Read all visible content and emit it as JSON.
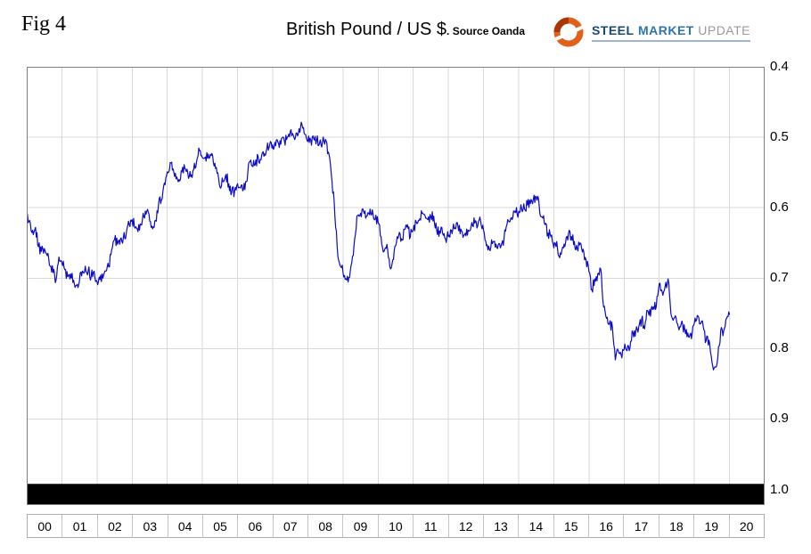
{
  "header": {
    "fig_label": "Fig 4",
    "title": "British Pound / US $",
    "source_note": ". Source Oanda"
  },
  "logo": {
    "word1": "STEEL",
    "word2": "MARKET",
    "word3": "UPDATE",
    "ring_color": "#e2611a"
  },
  "chart_data": {
    "type": "line",
    "title": "British Pound / US $",
    "source": "Oanda",
    "grid": true,
    "y_axis_increases_downward": true,
    "x_range_years": [
      2000,
      2021
    ],
    "y_range_top_to_bottom": [
      0.4,
      1.022
    ],
    "x_tick_labels": [
      "00",
      "01",
      "02",
      "03",
      "04",
      "05",
      "06",
      "07",
      "08",
      "09",
      "10",
      "11",
      "12",
      "13",
      "14",
      "15",
      "16",
      "17",
      "18",
      "19",
      "20"
    ],
    "y_tick_labels": [
      "0.4",
      "0.5",
      "0.6",
      "0.7",
      "0.8",
      "0.9",
      "1.0"
    ],
    "y_tick_values": [
      0.4,
      0.5,
      0.6,
      0.7,
      0.8,
      0.9,
      1.0
    ],
    "line_color": "#0b0bc8",
    "grid_color": "#d9d9d9",
    "border_color": "#7f7f7f",
    "bottom_bar": {
      "from_value": 0.992,
      "color": "#000000"
    },
    "series": [
      {
        "name": "British Pound / US $",
        "x_start": 2000.0,
        "x_step": 0.0833,
        "monthly_values": [
          0.615,
          0.618,
          0.632,
          0.628,
          0.655,
          0.662,
          0.658,
          0.668,
          0.683,
          0.692,
          0.703,
          0.67,
          0.678,
          0.688,
          0.698,
          0.694,
          0.703,
          0.71,
          0.704,
          0.69,
          0.683,
          0.689,
          0.698,
          0.69,
          0.705,
          0.702,
          0.7,
          0.69,
          0.684,
          0.66,
          0.645,
          0.652,
          0.644,
          0.642,
          0.636,
          0.624,
          0.617,
          0.629,
          0.634,
          0.624,
          0.613,
          0.605,
          0.619,
          0.63,
          0.618,
          0.596,
          0.589,
          0.565,
          0.549,
          0.536,
          0.545,
          0.559,
          0.56,
          0.549,
          0.544,
          0.551,
          0.556,
          0.546,
          0.534,
          0.519,
          0.529,
          0.528,
          0.524,
          0.526,
          0.541,
          0.551,
          0.571,
          0.563,
          0.553,
          0.566,
          0.578,
          0.576,
          0.566,
          0.572,
          0.574,
          0.563,
          0.535,
          0.541,
          0.539,
          0.527,
          0.532,
          0.527,
          0.516,
          0.51,
          0.511,
          0.512,
          0.509,
          0.502,
          0.505,
          0.5,
          0.492,
          0.497,
          0.494,
          0.488,
          0.482,
          0.496,
          0.506,
          0.504,
          0.502,
          0.505,
          0.508,
          0.506,
          0.503,
          0.521,
          0.552,
          0.592,
          0.655,
          0.682,
          0.692,
          0.701,
          0.699,
          0.678,
          0.644,
          0.611,
          0.608,
          0.605,
          0.612,
          0.61,
          0.603,
          0.616,
          0.621,
          0.641,
          0.662,
          0.652,
          0.684,
          0.674,
          0.654,
          0.64,
          0.644,
          0.631,
          0.624,
          0.641,
          0.631,
          0.62,
          0.618,
          0.608,
          0.611,
          0.617,
          0.613,
          0.612,
          0.632,
          0.633,
          0.636,
          0.644,
          0.641,
          0.632,
          0.63,
          0.621,
          0.637,
          0.642,
          0.64,
          0.633,
          0.621,
          0.622,
          0.626,
          0.619,
          0.632,
          0.654,
          0.659,
          0.651,
          0.656,
          0.653,
          0.654,
          0.644,
          0.624,
          0.62,
          0.614,
          0.607,
          0.605,
          0.601,
          0.602,
          0.596,
          0.594,
          0.588,
          0.585,
          0.597,
          0.613,
          0.624,
          0.636,
          0.641,
          0.657,
          0.648,
          0.671,
          0.656,
          0.65,
          0.637,
          0.641,
          0.648,
          0.658,
          0.65,
          0.659,
          0.674,
          0.691,
          0.716,
          0.701,
          0.694,
          0.687,
          0.741,
          0.757,
          0.764,
          0.769,
          0.816,
          0.803,
          0.809,
          0.801,
          0.803,
          0.799,
          0.777,
          0.775,
          0.769,
          0.758,
          0.772,
          0.746,
          0.754,
          0.741,
          0.74,
          0.708,
          0.719,
          0.712,
          0.701,
          0.751,
          0.757,
          0.763,
          0.769,
          0.766,
          0.779,
          0.783,
          0.786,
          0.764,
          0.753,
          0.765,
          0.768,
          0.789,
          0.788,
          0.819,
          0.826,
          0.813,
          0.774,
          0.775,
          0.757,
          0.752
        ]
      }
    ]
  }
}
